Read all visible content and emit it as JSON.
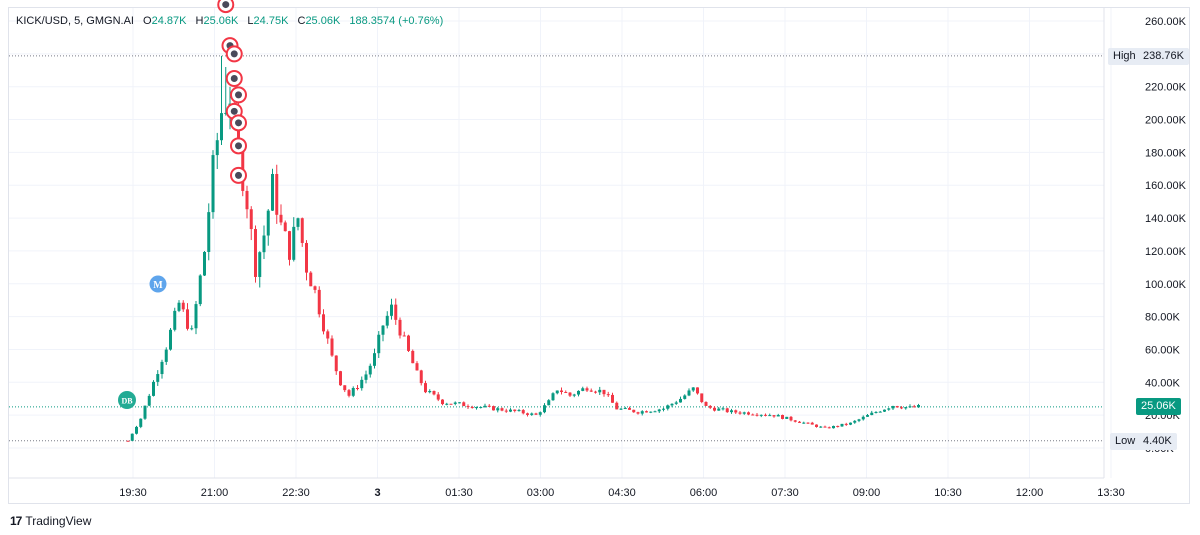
{
  "legend": {
    "symbol": "KICK/USD, 5, GMGN.AI",
    "o_label": "O",
    "o_value": "24.87K",
    "h_label": "H",
    "h_value": "25.06K",
    "l_label": "L",
    "l_value": "24.75K",
    "c_label": "C",
    "c_value": "25.06K",
    "change": "188.3574 (+0.76%)"
  },
  "markers": {
    "high_label": "High",
    "high_value": "238.76K",
    "low_label": "Low",
    "low_value": "4.40K",
    "last_value": "25.06K",
    "m_badge": "M",
    "db_badge": "DB"
  },
  "footer": {
    "brand": "TradingView",
    "logo": "17"
  },
  "colors": {
    "up": "#089981",
    "down": "#f23645",
    "grid": "#f0f3fa",
    "badge_red": "#f23645",
    "badge_blue": "#5fa5ec",
    "badge_green": "#22ab94"
  },
  "chart_data": {
    "type": "candlestick",
    "ylim": [
      0,
      260000
    ],
    "y_ticks": [
      "0.00K",
      "20.00K",
      "40.00K",
      "60.00K",
      "80.00K",
      "100.00K",
      "120.00K",
      "140.00K",
      "160.00K",
      "180.00K",
      "200.00K",
      "220.00K",
      "240.00K",
      "260.00K"
    ],
    "x_ticks": [
      "19:30",
      "21:00",
      "22:30",
      "3",
      "01:30",
      "03:00",
      "04:30",
      "06:00",
      "07:30",
      "09:00",
      "10:30",
      "12:00",
      "13:30"
    ],
    "high": 238760,
    "low": 4400,
    "last": 25060,
    "close_path": [
      [
        0,
        4400
      ],
      [
        3,
        18000
      ],
      [
        6,
        40000
      ],
      [
        9,
        62000
      ],
      [
        12,
        88000
      ],
      [
        15,
        70000
      ],
      [
        18,
        120000
      ],
      [
        20,
        170000
      ],
      [
        22,
        205000
      ],
      [
        24,
        215000
      ],
      [
        26,
        180000
      ],
      [
        28,
        150000
      ],
      [
        30,
        110000
      ],
      [
        32,
        130000
      ],
      [
        34,
        160000
      ],
      [
        36,
        135000
      ],
      [
        38,
        120000
      ],
      [
        40,
        140000
      ],
      [
        42,
        110000
      ],
      [
        44,
        95000
      ],
      [
        46,
        75000
      ],
      [
        48,
        55000
      ],
      [
        50,
        40000
      ],
      [
        52,
        32000
      ],
      [
        54,
        38000
      ],
      [
        56,
        45000
      ],
      [
        58,
        56000
      ],
      [
        60,
        75000
      ],
      [
        62,
        85000
      ],
      [
        64,
        72000
      ],
      [
        66,
        58000
      ],
      [
        68,
        45000
      ],
      [
        70,
        35000
      ],
      [
        74,
        28000
      ],
      [
        80,
        26000
      ],
      [
        86,
        24000
      ],
      [
        92,
        22000
      ],
      [
        96,
        20000
      ],
      [
        99,
        28000
      ],
      [
        101,
        36000
      ],
      [
        104,
        32000
      ],
      [
        108,
        37000
      ],
      [
        112,
        34000
      ],
      [
        115,
        24000
      ],
      [
        120,
        22000
      ],
      [
        126,
        24000
      ],
      [
        130,
        30000
      ],
      [
        133,
        36000
      ],
      [
        136,
        25000
      ],
      [
        142,
        22000
      ],
      [
        148,
        21000
      ],
      [
        152,
        20000
      ],
      [
        158,
        16000
      ],
      [
        164,
        12000
      ],
      [
        170,
        15000
      ],
      [
        176,
        22000
      ],
      [
        180,
        26000
      ],
      [
        184,
        24500
      ],
      [
        186,
        25060
      ]
    ],
    "wick_spikes": [
      [
        22,
        238760
      ],
      [
        23,
        232000
      ],
      [
        24,
        220000
      ],
      [
        25,
        210000
      ],
      [
        34,
        170000
      ],
      [
        26,
        130000
      ],
      [
        27,
        100000
      ],
      [
        19,
        80000
      ],
      [
        14,
        55000
      ]
    ],
    "icon_markers": [
      [
        23,
        270000
      ],
      [
        24,
        245000
      ],
      [
        25,
        240000
      ],
      [
        25,
        225000
      ],
      [
        26,
        215000
      ],
      [
        25,
        205000
      ],
      [
        26,
        198000
      ],
      [
        26,
        184000
      ],
      [
        26,
        166000
      ]
    ]
  }
}
